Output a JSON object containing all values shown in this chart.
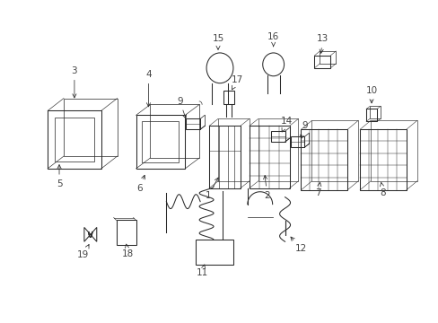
{
  "bg_color": "#ffffff",
  "line_color": "#2a2a2a",
  "label_color": "#444444",
  "label_fontsize": 7.5,
  "arrow_color": "#444444"
}
